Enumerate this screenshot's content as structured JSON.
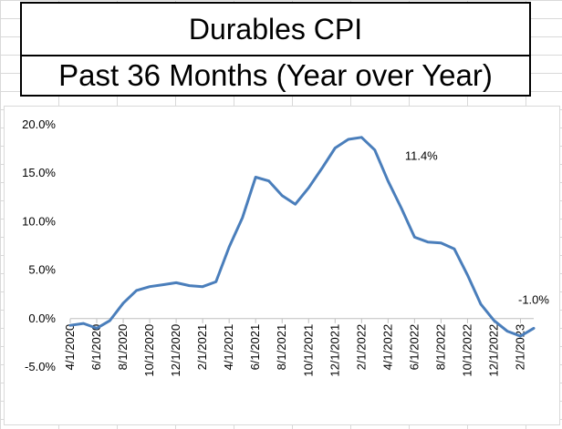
{
  "sheet": {
    "name": "Spreadsheet"
  },
  "title_box": {
    "line1": "Durables CPI",
    "line2": "Past 36 Months (Year over Year)"
  },
  "chart_data": {
    "type": "line",
    "title": "",
    "xlabel": "",
    "ylabel": "",
    "ylim": [
      -0.05,
      0.2
    ],
    "y_ticks": [
      "20.0%",
      "15.0%",
      "10.0%",
      "5.0%",
      "0.0%",
      "-5.0%"
    ],
    "y_tick_values": [
      0.2,
      0.15,
      0.1,
      0.05,
      0.0,
      -0.05
    ],
    "x_tick_labels": [
      "4/1/2020",
      "6/1/2020",
      "8/1/2020",
      "10/1/2020",
      "12/1/2020",
      "2/1/2021",
      "4/1/2021",
      "6/1/2021",
      "8/1/2021",
      "10/1/2021",
      "12/1/2021",
      "2/1/2022",
      "4/1/2022",
      "6/1/2022",
      "8/1/2022",
      "10/1/2022",
      "12/1/2022",
      "2/1/2023"
    ],
    "grid": false,
    "series": [
      {
        "color": "#4a7ebb",
        "x": [
          "4/1/2020",
          "5/1/2020",
          "6/1/2020",
          "7/1/2020",
          "8/1/2020",
          "9/1/2020",
          "10/1/2020",
          "11/1/2020",
          "12/1/2020",
          "1/1/2021",
          "2/1/2021",
          "3/1/2021",
          "4/1/2021",
          "5/1/2021",
          "6/1/2021",
          "7/1/2021",
          "8/1/2021",
          "9/1/2021",
          "10/1/2021",
          "11/1/2021",
          "12/1/2021",
          "1/1/2022",
          "2/1/2022",
          "3/1/2022",
          "4/1/2022",
          "5/1/2022",
          "6/1/2022",
          "7/1/2022",
          "8/1/2022",
          "9/1/2022",
          "10/1/2022",
          "11/1/2022",
          "12/1/2022",
          "1/1/2023",
          "2/1/2023",
          "3/1/2023"
        ],
        "values": [
          -0.007,
          -0.005,
          -0.01,
          -0.002,
          0.016,
          0.029,
          0.033,
          0.035,
          0.037,
          0.034,
          0.033,
          0.038,
          0.074,
          0.104,
          0.146,
          0.142,
          0.127,
          0.118,
          0.135,
          0.155,
          0.176,
          0.185,
          0.187,
          0.174,
          0.142,
          0.114,
          0.084,
          0.079,
          0.078,
          0.072,
          0.045,
          0.015,
          -0.002,
          -0.013,
          -0.018,
          -0.01
        ]
      }
    ],
    "annotations": [
      {
        "text": "11.4%",
        "at": "5/1/2022",
        "value": 0.114
      },
      {
        "text": "-1.0%",
        "at": "3/1/2023",
        "value": -0.01
      }
    ]
  }
}
